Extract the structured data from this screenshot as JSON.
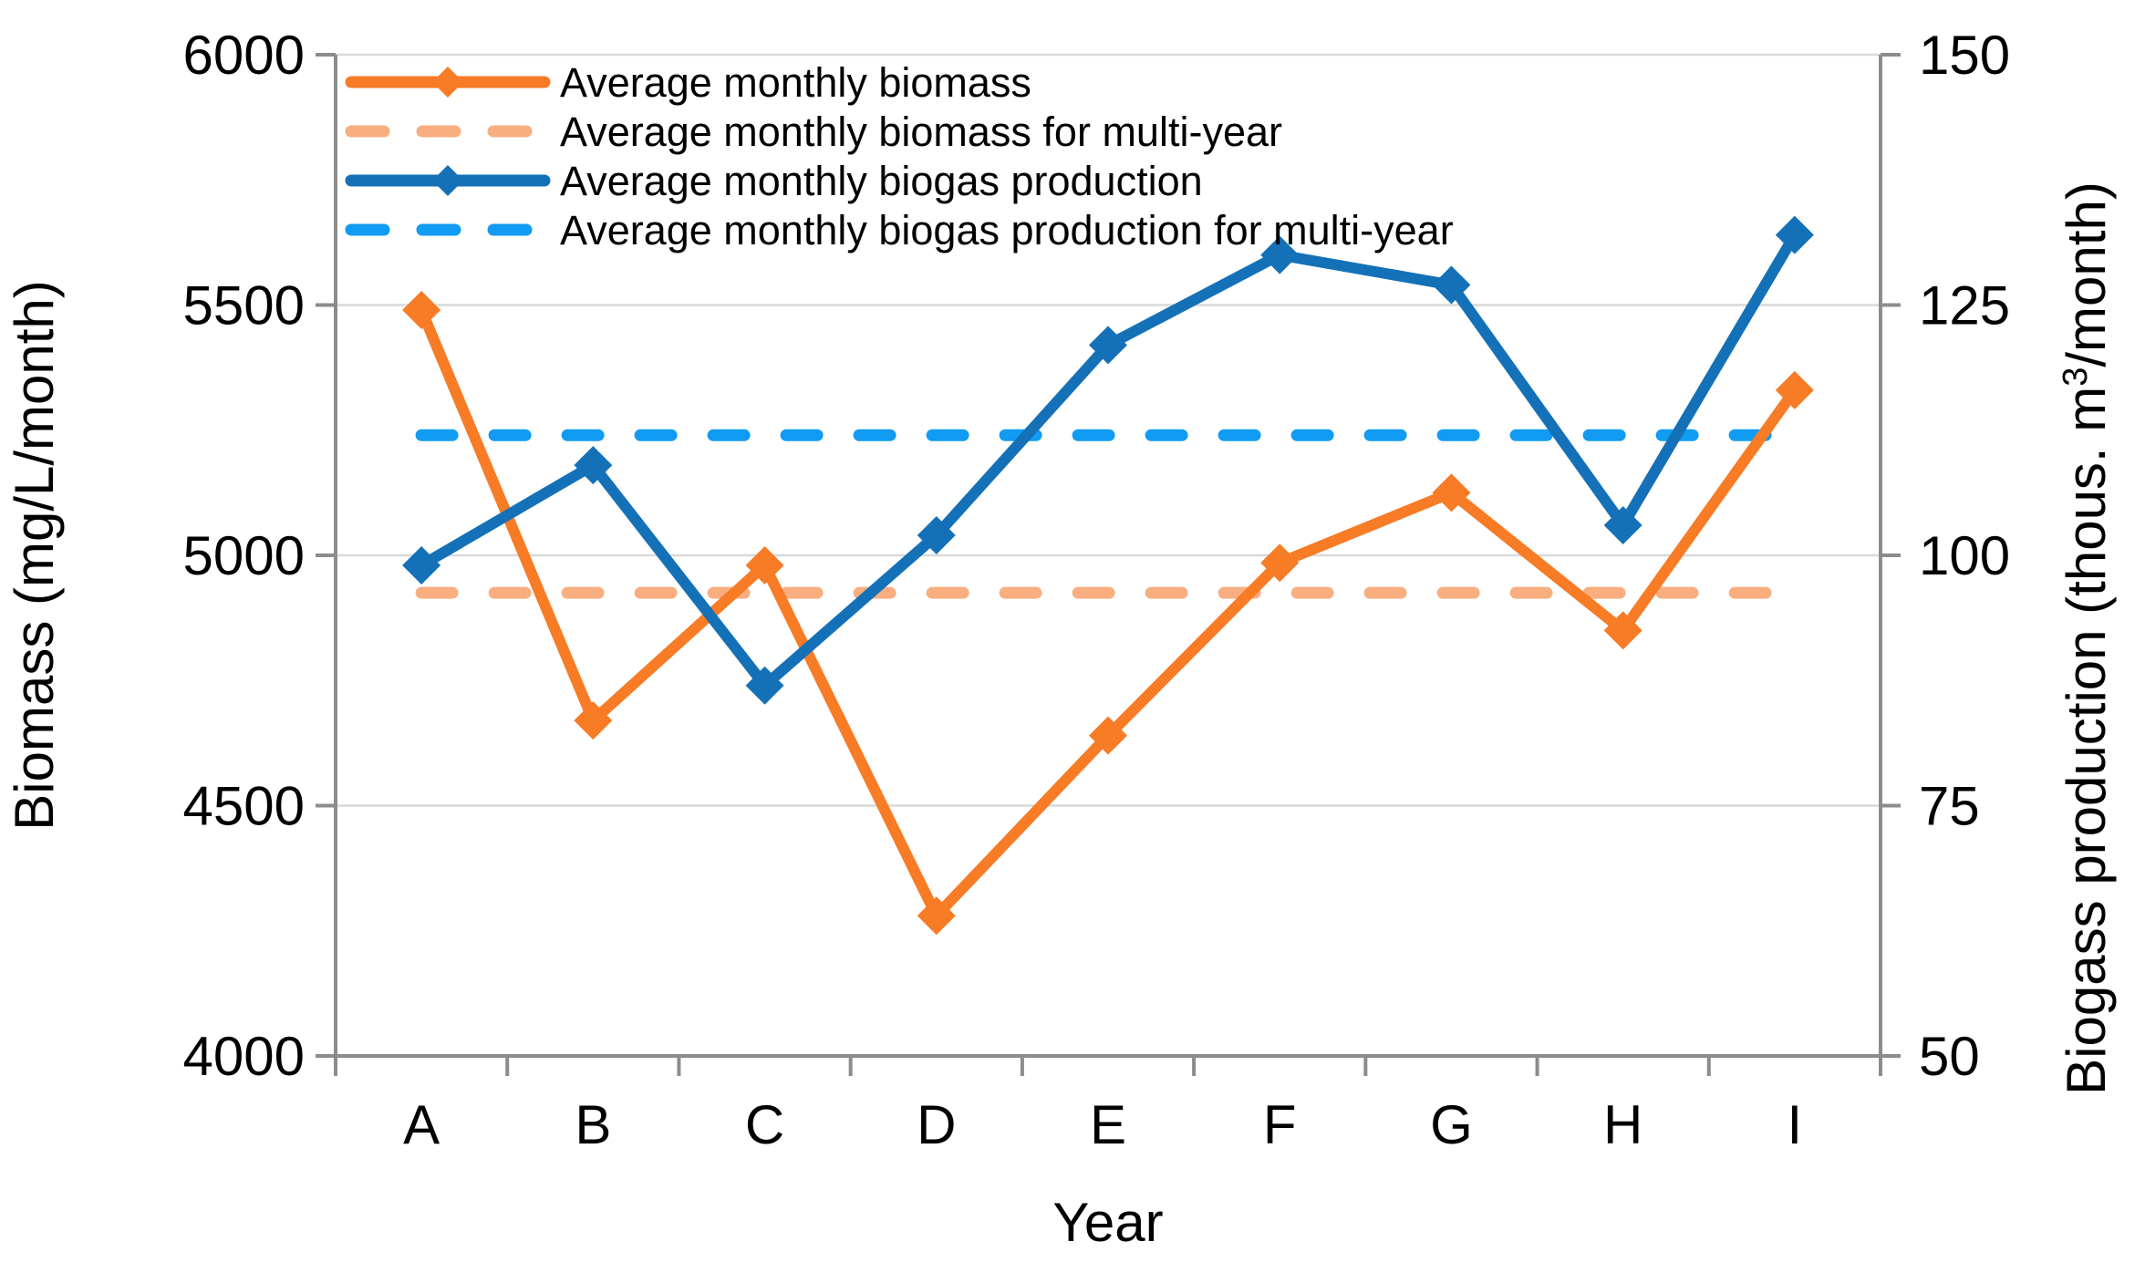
{
  "figure": {
    "background": "#FFFFFF",
    "colors": {
      "grid": "#D9D9D9",
      "axis": "#8C8C8C",
      "text": "#000000"
    }
  },
  "chart_data": {
    "type": "line",
    "categories": [
      "A",
      "B",
      "C",
      "D",
      "E",
      "F",
      "G",
      "H",
      "I"
    ],
    "xlabel": "Year",
    "left_axis": {
      "title": "Biomass (mg/L/month)",
      "min": 4000,
      "max": 6000,
      "ticks": [
        6000,
        5500,
        5000,
        4500,
        4000
      ]
    },
    "right_axis": {
      "title_prefix": "Biogass production (thous. m",
      "title_superscript": "3",
      "title_suffix": "/month)",
      "min": 50,
      "max": 150,
      "ticks": [
        150,
        125,
        100,
        75,
        50
      ]
    },
    "grid": true,
    "legend_position": "top-left",
    "series": [
      {
        "name": "Average monthly biomass",
        "axis": "left",
        "style": "solid",
        "marker": "diamond",
        "color": "#F87B25",
        "values": [
          5490,
          4670,
          4980,
          4280,
          4640,
          4985,
          5125,
          4850,
          5330
        ]
      },
      {
        "name": "Average monthly biomass for multi-year",
        "axis": "left",
        "style": "dashed",
        "marker": "none",
        "color": "#F9AE80",
        "constant_value": 4925
      },
      {
        "name": "Average monthly biogas production",
        "axis": "right",
        "style": "solid",
        "marker": "diamond",
        "color": "#1471B8",
        "values": [
          99,
          109,
          87,
          102,
          121,
          130,
          127,
          103,
          132
        ]
      },
      {
        "name": "Average monthly biogas production for multi-year",
        "axis": "right",
        "style": "dashed",
        "marker": "none",
        "color": "#119BF2",
        "constant_value": 112
      }
    ]
  }
}
